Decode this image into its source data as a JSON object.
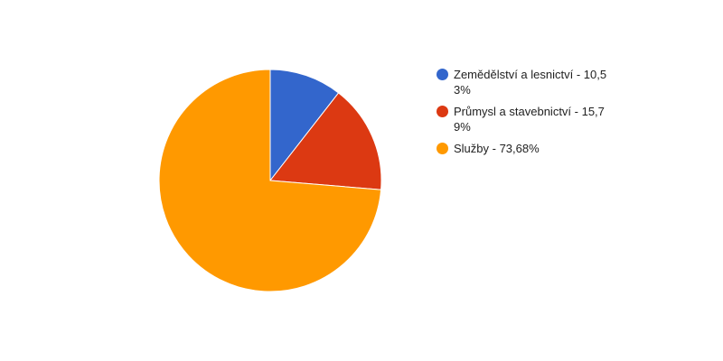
{
  "chart_data": {
    "type": "pie",
    "title": "",
    "legend_position": "right",
    "slices": [
      {
        "label": "Zemědělství a lesnictví - 10,53%",
        "value": 10.53,
        "color": "#3366cc"
      },
      {
        "label": "Průmysl a stavebnictví - 15,79%",
        "value": 15.79,
        "color": "#dc3912"
      },
      {
        "label": "Služby - 73,68%",
        "value": 73.68,
        "color": "#ff9900"
      }
    ]
  }
}
